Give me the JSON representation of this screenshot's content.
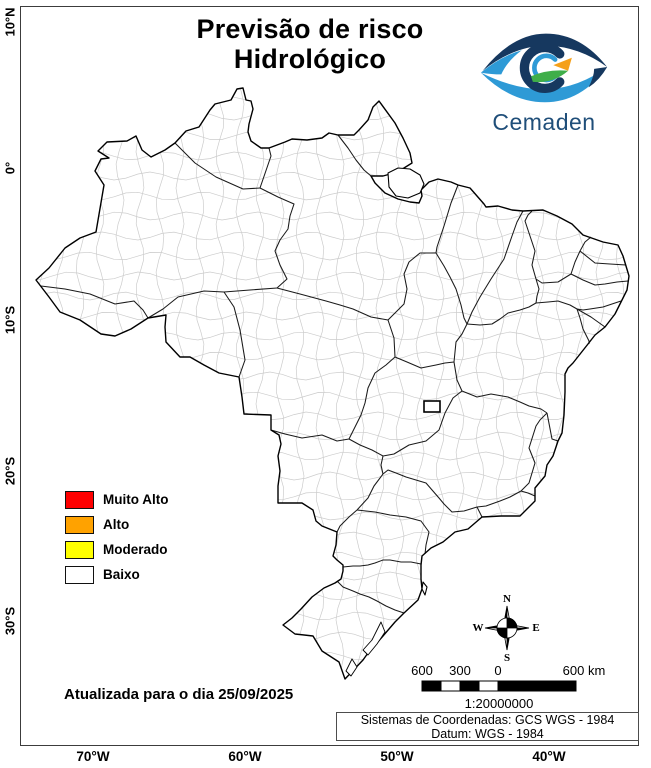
{
  "title": {
    "line1": "Previsão de risco",
    "line2": "Hidrológico"
  },
  "logo": {
    "name": "Cemaden",
    "colors": {
      "dark_blue": "#16385f",
      "light_blue": "#2e9ad6",
      "orange": "#f5a01a",
      "green": "#3fae49",
      "text": "#1f4e79"
    }
  },
  "legend": {
    "items": [
      {
        "label": "Muito Alto",
        "color": "#fe0000"
      },
      {
        "label": "Alto",
        "color": "#ffa200"
      },
      {
        "label": "Moderado",
        "color": "#ffff00"
      },
      {
        "label": "Baixo",
        "color": "#ffffff"
      }
    ]
  },
  "update_note": "Atualizada para o dia 25/09/2025",
  "axes": {
    "lat": [
      "10°N",
      "0°",
      "10°S",
      "20°S",
      "30°S"
    ],
    "lon": [
      "70°W",
      "60°W",
      "50°W",
      "40°W"
    ]
  },
  "compass": {
    "n": "N",
    "e": "E",
    "s": "S",
    "w": "W"
  },
  "scale_bar": {
    "labels": [
      "600",
      "300",
      "0",
      "600 km"
    ],
    "ratio": "1:20000000"
  },
  "coordinates": {
    "line1": "Sistemas de Coordenadas: GCS WGS - 1984",
    "line2": "Datum: WGS - 1984"
  },
  "map": {
    "region": "Brazil",
    "boundary_colors": {
      "state": "#1a1a1a",
      "municipal": "#cccccc"
    }
  }
}
